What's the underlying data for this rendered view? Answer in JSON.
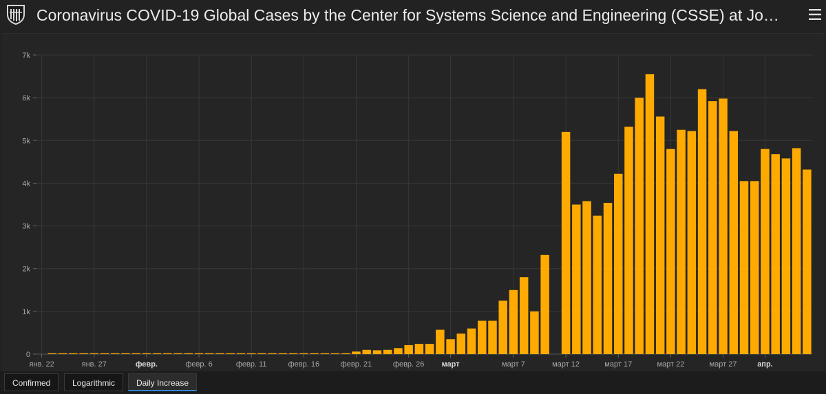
{
  "header": {
    "title": "Coronavirus COVID-19 Global Cases by the Center for Systems Science and Engineering (CSSE) at Jo…",
    "logo_icon": "university-shield-icon",
    "menu_icon": "hamburger-menu-icon"
  },
  "tabs": [
    {
      "label": "Confirmed",
      "active": false
    },
    {
      "label": "Logarithmic",
      "active": false
    },
    {
      "label": "Daily Increase",
      "active": true
    }
  ],
  "colors": {
    "bar": "#ffaa00",
    "background": "#252525",
    "grid": "#383838",
    "tick_text": "#a8a8a8",
    "active_tab_underline": "#2d89d6"
  },
  "chart_data": {
    "type": "bar",
    "title": "",
    "xlabel": "",
    "ylabel": "",
    "ylim": [
      0,
      7000
    ],
    "yticks": [
      0,
      1000,
      2000,
      3000,
      4000,
      5000,
      6000,
      7000
    ],
    "ytick_labels": [
      "0",
      "1k",
      "2k",
      "3k",
      "4k",
      "5k",
      "6k",
      "7k"
    ],
    "grid": true,
    "x_start_label": "янв. 22",
    "x_tick_labels": [
      {
        "index": 0,
        "label": "янв. 22",
        "bold": false
      },
      {
        "index": 5,
        "label": "янв. 27",
        "bold": false
      },
      {
        "index": 10,
        "label": "февр.",
        "bold": true
      },
      {
        "index": 15,
        "label": "февр. 6",
        "bold": false
      },
      {
        "index": 20,
        "label": "февр. 11",
        "bold": false
      },
      {
        "index": 25,
        "label": "февр. 16",
        "bold": false
      },
      {
        "index": 30,
        "label": "февр. 21",
        "bold": false
      },
      {
        "index": 35,
        "label": "февр. 26",
        "bold": false
      },
      {
        "index": 39,
        "label": "март",
        "bold": true
      },
      {
        "index": 45,
        "label": "март 7",
        "bold": false
      },
      {
        "index": 50,
        "label": "март 12",
        "bold": false
      },
      {
        "index": 55,
        "label": "март 17",
        "bold": false
      },
      {
        "index": 60,
        "label": "март 22",
        "bold": false
      },
      {
        "index": 65,
        "label": "март 27",
        "bold": false
      },
      {
        "index": 69,
        "label": "апр.",
        "bold": true
      }
    ],
    "values": [
      0,
      5,
      2,
      3,
      5,
      5,
      3,
      3,
      3,
      5,
      5,
      5,
      5,
      5,
      5,
      5,
      5,
      5,
      5,
      5,
      5,
      5,
      5,
      5,
      5,
      5,
      5,
      5,
      5,
      20,
      60,
      100,
      90,
      100,
      140,
      210,
      240,
      240,
      570,
      350,
      480,
      600,
      780,
      780,
      1250,
      1500,
      1800,
      1000,
      2320,
      0,
      5200,
      3500,
      3580,
      3240,
      3540,
      4220,
      5320,
      6000,
      6550,
      5560,
      4800,
      5250,
      5220,
      6200,
      5920,
      5980,
      5220,
      4050,
      4050,
      4800,
      4680,
      4580,
      4820,
      4320
    ]
  }
}
